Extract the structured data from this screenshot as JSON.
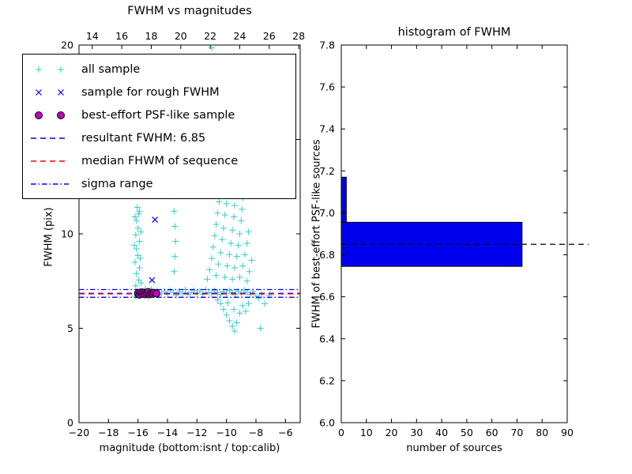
{
  "chart_data": [
    {
      "type": "scatter",
      "title": "FWHM vs magnitudes",
      "xlabel": "magnitude (bottom:isnt / top:calib)",
      "ylabel": "FWHM (pix)",
      "xlim": [
        -20,
        -5
      ],
      "ylim": [
        0,
        20
      ],
      "calib_offset": 33.1,
      "x_ticks_bottom": {
        "values": [
          -20,
          -18,
          -16,
          -14,
          -12,
          -10,
          -8,
          -6
        ],
        "labels": [
          "−20",
          "−18",
          "−16",
          "−14",
          "−12",
          "−10",
          "−8",
          "−6"
        ]
      },
      "x_ticks_top": {
        "values": [
          14,
          16,
          18,
          20,
          22,
          24,
          26,
          28
        ],
        "labels": [
          "14",
          "16",
          "18",
          "20",
          "22",
          "24",
          "26",
          "28"
        ]
      },
      "y_ticks": {
        "values": [
          0,
          5,
          10,
          15,
          20
        ],
        "labels": [
          "0",
          "5",
          "10",
          "15",
          "20"
        ]
      },
      "series": [
        {
          "name": "all sample",
          "marker": "plus",
          "color": "#33cccc",
          "points": [
            [
              -16.2,
              6.7
            ],
            [
              -16.05,
              6.95
            ],
            [
              -16.15,
              7.25
            ],
            [
              -15.95,
              7.55
            ],
            [
              -16.1,
              7.9
            ],
            [
              -15.9,
              8.2
            ],
            [
              -16.2,
              8.5
            ],
            [
              -16.0,
              8.85
            ],
            [
              -16.1,
              9.2
            ],
            [
              -15.9,
              9.6
            ],
            [
              -16.15,
              9.95
            ],
            [
              -16.0,
              10.3
            ],
            [
              -16.1,
              10.7
            ],
            [
              -15.95,
              11.05
            ],
            [
              -16.05,
              11.4
            ],
            [
              -15.85,
              6.8
            ],
            [
              -15.8,
              7.4
            ],
            [
              -15.85,
              8.7
            ],
            [
              -15.8,
              10.1
            ],
            [
              -15.9,
              11.2
            ],
            [
              -16.25,
              9.4
            ],
            [
              -16.2,
              10.9
            ],
            [
              -15.6,
              6.75
            ],
            [
              -15.4,
              6.9
            ],
            [
              -15.2,
              6.8
            ],
            [
              -15.0,
              6.95
            ],
            [
              -14.8,
              6.85
            ],
            [
              -14.6,
              6.75
            ],
            [
              -15.5,
              7.1
            ],
            [
              -15.1,
              7.05
            ],
            [
              -14.7,
              7.0
            ],
            [
              -15.3,
              6.65
            ],
            [
              -14.4,
              6.85
            ],
            [
              -14.2,
              6.95
            ],
            [
              -14.0,
              6.8
            ],
            [
              -13.8,
              7.0
            ],
            [
              -13.6,
              6.9
            ],
            [
              -13.4,
              6.75
            ],
            [
              -13.2,
              6.95
            ],
            [
              -13.0,
              6.85
            ],
            [
              -12.8,
              7.05
            ],
            [
              -12.6,
              6.8
            ],
            [
              -12.4,
              6.9
            ],
            [
              -12.2,
              7.0
            ],
            [
              -12.0,
              6.85
            ],
            [
              -11.8,
              6.95
            ],
            [
              -11.6,
              6.8
            ],
            [
              -11.4,
              7.05
            ],
            [
              -11.2,
              6.9
            ],
            [
              -11.0,
              6.85
            ],
            [
              -10.8,
              7.0
            ],
            [
              -10.6,
              6.9
            ],
            [
              -10.4,
              6.8
            ],
            [
              -10.2,
              6.95
            ],
            [
              -10.0,
              6.85
            ],
            [
              -9.8,
              7.0
            ],
            [
              -9.6,
              6.9
            ],
            [
              -9.4,
              6.8
            ],
            [
              -9.2,
              6.95
            ],
            [
              -9.0,
              6.85
            ],
            [
              -8.8,
              7.0
            ],
            [
              -8.6,
              6.9
            ],
            [
              -8.4,
              6.8
            ],
            [
              -8.2,
              6.95
            ],
            [
              -13.55,
              8.0
            ],
            [
              -13.5,
              8.8
            ],
            [
              -13.45,
              9.6
            ],
            [
              -13.5,
              10.4
            ],
            [
              -13.55,
              11.2
            ],
            [
              -13.5,
              12.0
            ],
            [
              -13.45,
              12.6
            ],
            [
              -11.3,
              7.6
            ],
            [
              -11.15,
              8.1
            ],
            [
              -11.0,
              8.7
            ],
            [
              -10.9,
              9.3
            ],
            [
              -10.8,
              9.9
            ],
            [
              -10.7,
              10.5
            ],
            [
              -10.6,
              11.1
            ],
            [
              -10.5,
              11.7
            ],
            [
              -10.45,
              12.3
            ],
            [
              -10.4,
              12.9
            ],
            [
              -10.7,
              7.8
            ],
            [
              -10.55,
              8.4
            ],
            [
              -10.4,
              9.0
            ],
            [
              -10.3,
              9.7
            ],
            [
              -10.2,
              10.3
            ],
            [
              -10.1,
              11.0
            ],
            [
              -10.0,
              11.6
            ],
            [
              -9.95,
              12.2
            ],
            [
              -9.9,
              12.8
            ],
            [
              -10.1,
              7.7
            ],
            [
              -9.95,
              8.3
            ],
            [
              -9.8,
              8.9
            ],
            [
              -9.7,
              9.5
            ],
            [
              -9.6,
              10.2
            ],
            [
              -9.5,
              10.9
            ],
            [
              -9.45,
              11.5
            ],
            [
              -9.4,
              12.1
            ],
            [
              -9.35,
              12.7
            ],
            [
              -9.6,
              7.6
            ],
            [
              -9.45,
              8.2
            ],
            [
              -9.3,
              8.8
            ],
            [
              -9.2,
              9.4
            ],
            [
              -9.1,
              10.0
            ],
            [
              -9.0,
              10.7
            ],
            [
              -8.95,
              11.3
            ],
            [
              -8.9,
              11.9
            ],
            [
              -9.1,
              7.7
            ],
            [
              -8.9,
              8.3
            ],
            [
              -8.75,
              8.9
            ],
            [
              -8.6,
              9.5
            ],
            [
              -8.5,
              10.1
            ],
            [
              -8.6,
              7.5
            ],
            [
              -8.45,
              8.0
            ],
            [
              -8.3,
              8.6
            ],
            [
              -10.4,
              6.3
            ],
            [
              -10.2,
              6.0
            ],
            [
              -10.0,
              5.7
            ],
            [
              -9.8,
              5.4
            ],
            [
              -9.6,
              5.1
            ],
            [
              -9.45,
              4.85
            ],
            [
              -9.3,
              5.3
            ],
            [
              -9.1,
              5.8
            ],
            [
              -8.9,
              6.2
            ],
            [
              -8.7,
              5.9
            ],
            [
              -8.5,
              6.3
            ],
            [
              -10.6,
              6.5
            ],
            [
              -9.9,
              6.35
            ],
            [
              -9.5,
              6.0
            ],
            [
              -8.0,
              6.7
            ],
            [
              -7.8,
              6.6
            ],
            [
              -7.6,
              6.8
            ],
            [
              -7.7,
              5.0
            ],
            [
              -7.4,
              6.3
            ],
            [
              -7.1,
              6.75
            ],
            [
              -11.0,
              19.85
            ]
          ]
        },
        {
          "name": "sample for rough FWHM",
          "marker": "x",
          "color": "#0000ff",
          "points": [
            [
              -14.85,
              10.75
            ],
            [
              -15.05,
              7.55
            ]
          ]
        },
        {
          "name": "best-effort PSF-like sample",
          "marker": "circle",
          "color": "#bf00bf",
          "edge_color": "#000000",
          "points": [
            [
              -16.0,
              6.85
            ],
            [
              -15.9,
              6.78
            ],
            [
              -15.8,
              6.9
            ],
            [
              -15.7,
              6.82
            ],
            [
              -15.6,
              6.88
            ],
            [
              -15.5,
              6.8
            ],
            [
              -15.4,
              6.86
            ],
            [
              -15.3,
              6.92
            ],
            [
              -15.2,
              6.8
            ],
            [
              -15.1,
              6.87
            ],
            [
              -15.0,
              6.82
            ],
            [
              -14.9,
              6.88
            ],
            [
              -14.75,
              6.84
            ]
          ]
        }
      ],
      "lines": [
        {
          "name": "resultant FWHM",
          "value": 6.85,
          "style": "dashed",
          "color": "#0000ff"
        },
        {
          "name": "median FHWM of sequence",
          "value": 6.82,
          "style": "dashed",
          "color": "#ff0000"
        },
        {
          "name": "sigma range upper",
          "value": 7.05,
          "style": "dashdot",
          "color": "#0000ff"
        },
        {
          "name": "sigma range lower",
          "value": 6.64,
          "style": "dashdot",
          "color": "#0000ff"
        }
      ],
      "legend": [
        {
          "label": "all sample",
          "type": "plus",
          "color": "#33cccc"
        },
        {
          "label": "sample for rough FWHM",
          "type": "x",
          "color": "#0000ff"
        },
        {
          "label": "best-effort PSF-like sample",
          "type": "circle",
          "color": "#bf00bf"
        },
        {
          "label": "resultant FWHM: 6.85",
          "type": "dashed",
          "color": "#0000ff"
        },
        {
          "label": "median FHWM of sequence",
          "type": "dashed",
          "color": "#ff0000"
        },
        {
          "label": "sigma range",
          "type": "dashdot",
          "color": "#0000ff"
        }
      ],
      "resultant_fwhm": 6.85
    },
    {
      "type": "bar-horizontal",
      "title": "histogram of FWHM",
      "xlabel": "number of sources",
      "ylabel": "FWHM of best-effort PSF-like sources",
      "xlim": [
        0,
        90
      ],
      "ylim": [
        6.0,
        7.8
      ],
      "x_ticks": {
        "values": [
          0,
          10,
          20,
          30,
          40,
          50,
          60,
          70,
          80,
          90
        ],
        "labels": [
          "0",
          "10",
          "20",
          "30",
          "40",
          "50",
          "60",
          "70",
          "80",
          "90"
        ]
      },
      "y_ticks": {
        "values": [
          6.0,
          6.2,
          6.4,
          6.6,
          6.8,
          7.0,
          7.2,
          7.4,
          7.6,
          7.8
        ],
        "labels": [
          "6.0",
          "6.2",
          "6.4",
          "6.6",
          "6.8",
          "7.0",
          "7.2",
          "7.4",
          "7.6",
          "7.8"
        ]
      },
      "bar_color": "#0000ee",
      "bar_edge_color": "#000000",
      "bars": [
        {
          "fwhm_from": 6.745,
          "fwhm_to": 6.955,
          "count": 72
        },
        {
          "fwhm_from": 6.955,
          "fwhm_to": 7.17,
          "count": 2
        }
      ],
      "median_line": {
        "value": 6.85,
        "style": "dashed",
        "color": "#000000"
      }
    }
  ]
}
